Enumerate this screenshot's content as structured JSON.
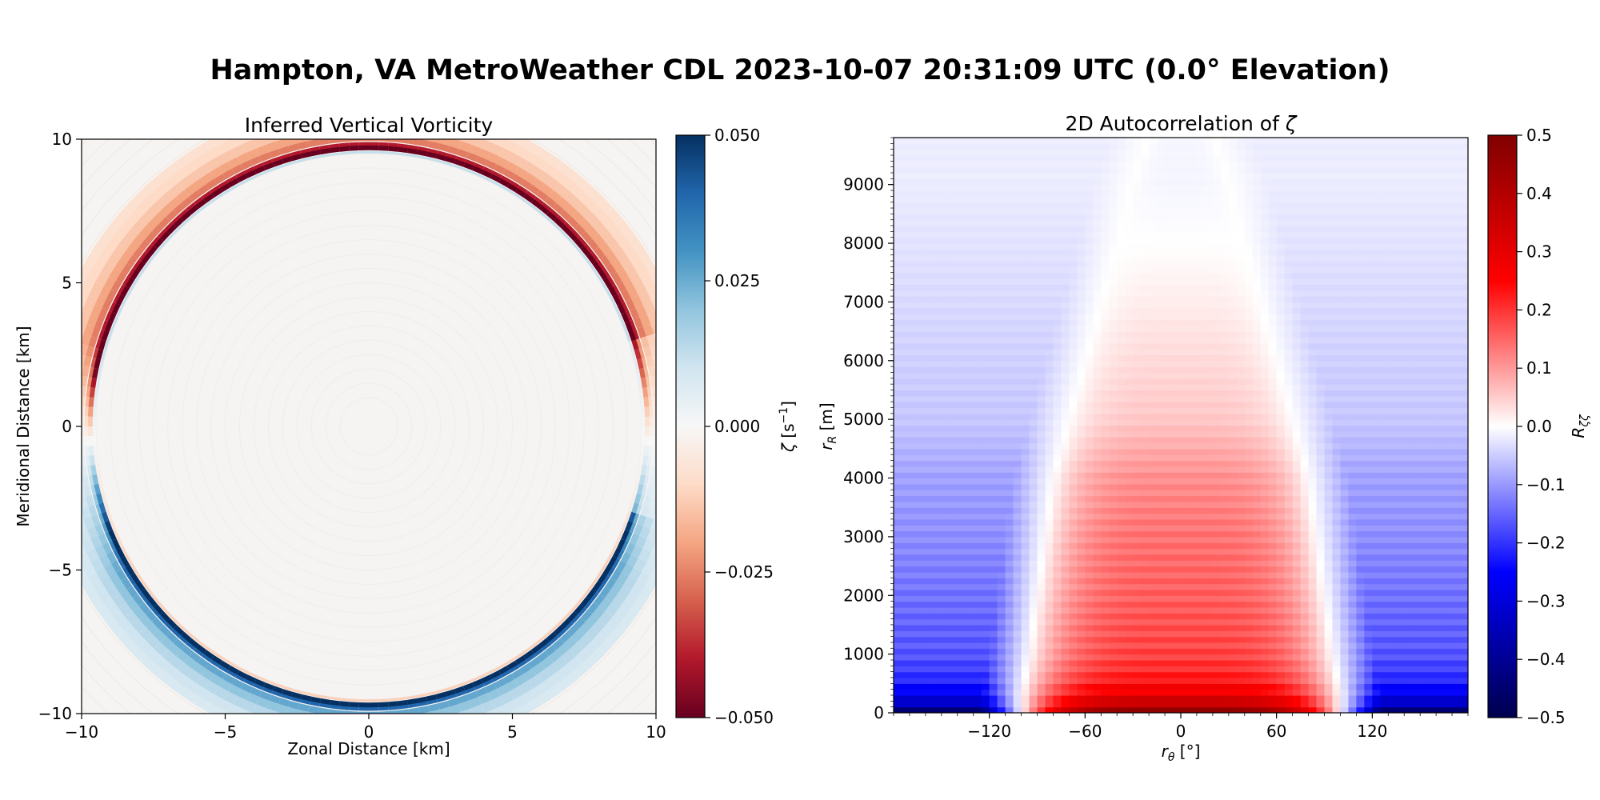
{
  "suptitle": "Hampton, VA MetroWeather CDL 2023-10-07 20:31:09 UTC (0.0° Elevation)",
  "chart_data": [
    {
      "type": "heatmap",
      "title": "Inferred Vertical Vorticity",
      "xlabel": "Zonal Distance [km]",
      "ylabel": "Meridional Distance [km]",
      "xlim": [
        -10,
        10
      ],
      "ylim": [
        -10,
        10
      ],
      "xticks": [
        "−10",
        "−5",
        "0",
        "5",
        "10"
      ],
      "yticks": [
        "−10",
        "−5",
        "0",
        "5",
        "10"
      ],
      "description_field": "ring of vorticity at radius ~9.7 km; negative (red) on northern half, positive (blue) on southern half",
      "ring_radius_km": 9.7,
      "colorbar": {
        "label": "ζ [s⁻¹]",
        "colormap": "RdBu",
        "range": [
          -0.05,
          0.05
        ],
        "ticks": [
          "0.050",
          "0.025",
          "0.000",
          "−0.025",
          "−0.050"
        ],
        "tick_values": [
          0.05,
          0.025,
          0,
          -0.025,
          -0.05
        ]
      }
    },
    {
      "type": "heatmap",
      "title": "2D Autocorrelation of ζ",
      "xlabel": "r_θ [°]",
      "ylabel": "r_R [m]",
      "xlim": [
        -180,
        180
      ],
      "ylim": [
        0,
        9800
      ],
      "xticks": [
        "−120",
        "−60",
        "0",
        "60",
        "120"
      ],
      "xtick_values": [
        -120,
        -60,
        0,
        60,
        120
      ],
      "yticks": [
        "0",
        "1000",
        "2000",
        "3000",
        "4000",
        "5000",
        "6000",
        "7000",
        "8000",
        "9000"
      ],
      "ytick_values": [
        0,
        1000,
        2000,
        3000,
        4000,
        5000,
        6000,
        7000,
        8000,
        9000
      ],
      "profile": {
        "r_R_m": [
          0,
          100,
          300,
          600,
          1000,
          2000,
          3000,
          4000,
          4500,
          5000,
          6000,
          7000,
          8000,
          9000,
          9800
        ],
        "center_value": [
          0.5,
          0.44,
          0.32,
          0.24,
          0.2,
          0.17,
          0.15,
          0.12,
          0.09,
          0.06,
          0.04,
          0.02,
          0.0,
          -0.01,
          -0.01
        ],
        "edge_value": [
          -0.5,
          -0.4,
          -0.3,
          -0.22,
          -0.18,
          -0.15,
          -0.12,
          -0.1,
          -0.08,
          -0.06,
          -0.05,
          -0.04,
          -0.03,
          -0.02,
          -0.02
        ],
        "zero_crossing_deg": [
          100,
          100,
          100,
          98,
          95,
          90,
          85,
          80,
          75,
          70,
          60,
          50,
          40,
          30,
          20
        ]
      },
      "colorbar": {
        "label": "R_ζζ",
        "colormap": "seismic",
        "range": [
          -0.5,
          0.5
        ],
        "ticks": [
          "0.5",
          "0.4",
          "0.3",
          "0.2",
          "0.1",
          "0.0",
          "−0.1",
          "−0.2",
          "−0.3",
          "−0.4",
          "−0.5"
        ],
        "tick_values": [
          0.5,
          0.4,
          0.3,
          0.2,
          0.1,
          0.0,
          -0.1,
          -0.2,
          -0.3,
          -0.4,
          -0.5
        ]
      }
    }
  ]
}
